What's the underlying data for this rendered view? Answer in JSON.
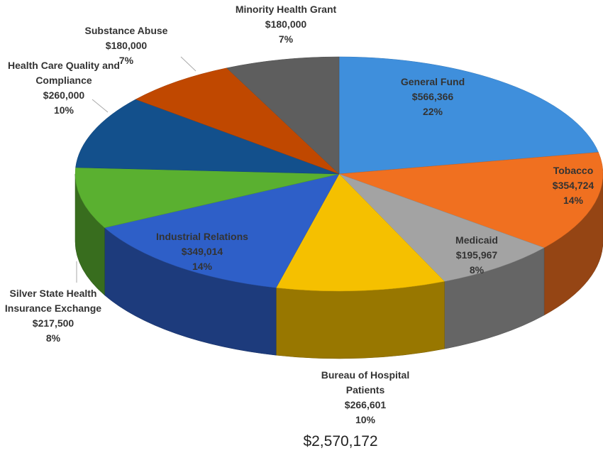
{
  "chart_data": {
    "type": "pie3d",
    "categories": [
      "General Fund",
      "Tobacco",
      "Medicaid",
      "Bureau of Hospital Patients",
      "Industrial Relations",
      "Silver State Health Insurance Exchange",
      "Health Care Quality and Compliance",
      "Substance Abuse",
      "Minority Health Grant"
    ],
    "values": [
      566366,
      354724,
      195967,
      266601,
      349014,
      217500,
      260000,
      180000,
      180000
    ],
    "value_labels": [
      "$566,366",
      "$354,724",
      "$195,967",
      "$266,601",
      "$349,014",
      "$217,500",
      "$260,000",
      "$180,000",
      "$180,000"
    ],
    "percentages": [
      22,
      14,
      8,
      10,
      14,
      8,
      10,
      7,
      7
    ],
    "percentage_labels": [
      "22%",
      "14%",
      "8%",
      "10%",
      "14%",
      "8%",
      "10%",
      "7%",
      "7%"
    ],
    "colors": [
      "#3f8fdc",
      "#f07020",
      "#a3a3a3",
      "#f5c000",
      "#2e5fc8",
      "#5ab030",
      "#13508c",
      "#c04800",
      "#5e5e5e"
    ],
    "total": 2570172,
    "total_label": "$2,570,172"
  }
}
